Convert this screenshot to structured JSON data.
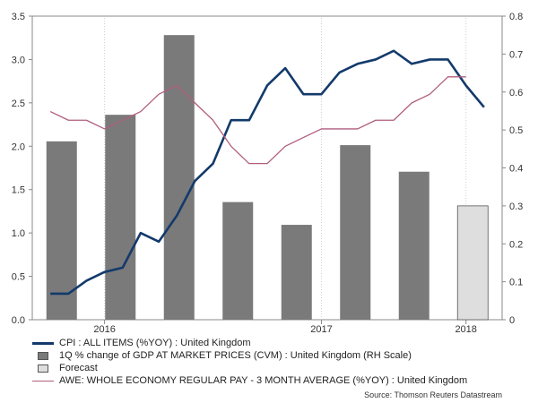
{
  "chart_data": {
    "type": "bar+line",
    "x_ticks": [
      {
        "label": "2016",
        "x": 1.5
      },
      {
        "label": "2017",
        "x": 7.5
      },
      {
        "label": "2018",
        "x": 11.5
      }
    ],
    "x_domain": [
      -0.5,
      12.5
    ],
    "y_left": {
      "min": 0,
      "max": 3.5,
      "ticks": [
        "0.0",
        "0.5",
        "1.0",
        "1.5",
        "2.0",
        "2.5",
        "3.0",
        "3.5"
      ]
    },
    "y_right": {
      "min": 0,
      "max": 0.8,
      "ticks": [
        "0",
        "0.1",
        "0.2",
        "0.3",
        "0.4",
        "0.5",
        "0.6",
        "0.7",
        "0.8"
      ]
    },
    "series": [
      {
        "name": "CPI : ALL ITEMS (%YOY) : United Kingdom",
        "type": "line",
        "axis": "left",
        "color": "#133a6b",
        "x": [
          0,
          0.5,
          1,
          1.5,
          2,
          2.5,
          3,
          3.5,
          4,
          4.5,
          5,
          5.5,
          6,
          6.5,
          7,
          7.5,
          8,
          8.5,
          9,
          9.5,
          10,
          10.5,
          11,
          11.5,
          12
        ],
        "values": [
          0.3,
          0.3,
          0.45,
          0.55,
          0.6,
          1.0,
          0.9,
          1.2,
          1.6,
          1.8,
          2.3,
          2.3,
          2.7,
          2.9,
          2.6,
          2.6,
          2.85,
          2.95,
          3.0,
          3.1,
          2.95,
          3.0,
          3.0,
          2.7,
          2.45
        ]
      },
      {
        "name": "1Q % change of GDP AT MARKET PRICES (CVM) : United Kingdom (RH Scale)",
        "type": "bar",
        "axis": "right",
        "color": "#7a7a7a",
        "x": [
          0,
          1,
          2,
          3,
          4,
          5,
          6
        ],
        "values": [
          0.47,
          0.54,
          0.75,
          0.31,
          0.25,
          0.46,
          0.39
        ]
      },
      {
        "name": "Forecast",
        "type": "bar",
        "axis": "right",
        "color": "#dedede",
        "x": [
          7
        ],
        "values": [
          0.3
        ]
      },
      {
        "name": "AWE: WHOLE ECONOMY REGULAR PAY - 3 MONTH AVERAGE (%YOY) : United Kingdom",
        "type": "line",
        "axis": "left",
        "color": "#b05d7e",
        "x": [
          0,
          0.5,
          1,
          1.5,
          2,
          2.5,
          3,
          3.5,
          4,
          4.5,
          5,
          5.5,
          6,
          6.5,
          7,
          7.5,
          8,
          8.5,
          9,
          9.5,
          10,
          10.5,
          11,
          11.5
        ],
        "values": [
          2.4,
          2.3,
          2.3,
          2.2,
          2.3,
          2.4,
          2.6,
          2.7,
          2.5,
          2.3,
          2.0,
          1.8,
          1.8,
          2.0,
          2.1,
          2.2,
          2.2,
          2.2,
          2.3,
          2.3,
          2.5,
          2.6,
          2.8,
          2.8
        ]
      }
    ],
    "bar_positions": [
      0,
      1,
      2,
      3,
      4,
      5,
      6,
      7
    ],
    "title": "",
    "xlabel": "",
    "ylabel": "",
    "source": "Source: Thomson Reuters Datastream"
  },
  "legend": [
    {
      "kind": "line",
      "color": "#133a6b",
      "label": "CPI : ALL ITEMS (%YOY) : United Kingdom"
    },
    {
      "kind": "box",
      "color": "#7a7a7a",
      "label": "1Q % change of GDP AT MARKET PRICES (CVM) : United Kingdom (RH Scale)"
    },
    {
      "kind": "box",
      "color": "#dedede",
      "label": "Forecast"
    },
    {
      "kind": "line",
      "color": "#b05d7e",
      "label": "AWE: WHOLE ECONOMY REGULAR PAY - 3 MONTH AVERAGE (%YOY) : United Kingdom"
    }
  ]
}
